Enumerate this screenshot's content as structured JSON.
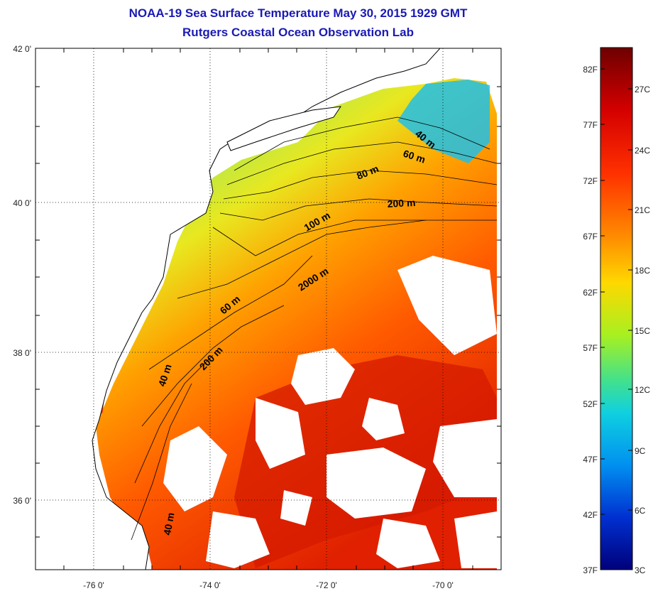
{
  "title": {
    "line1": "NOAA-19 Sea Surface Temperature May 30, 2015 1929 GMT",
    "line2": "Rutgers Coastal Ocean Observation Lab"
  },
  "map": {
    "lat_labels": [
      "42 0'",
      "40 0'",
      "38 0'",
      "36 0'"
    ],
    "lon_labels": [
      "-76 0'",
      "-74 0'",
      "-72 0'",
      "-70 0'"
    ],
    "contour_labels": [
      "40 m",
      "60 m",
      "80 m",
      "200 m",
      "100 m",
      "2000 m",
      "60 m",
      "200 m",
      "40 m",
      "40 m"
    ]
  },
  "colorbar": {
    "fahrenheit": [
      "82F",
      "77F",
      "72F",
      "67F",
      "62F",
      "57F",
      "52F",
      "47F",
      "42F",
      "37F"
    ],
    "celsius": [
      "27C",
      "24C",
      "21C",
      "18C",
      "15C",
      "12C",
      "9C",
      "6C",
      "3C"
    ],
    "colors": [
      "#7a0000",
      "#d40000",
      "#ff3c00",
      "#ff8c00",
      "#ffd400",
      "#c8f000",
      "#64e050",
      "#20d0c0",
      "#00a0f0",
      "#0050e0",
      "#0010b0",
      "#00007a"
    ]
  }
}
